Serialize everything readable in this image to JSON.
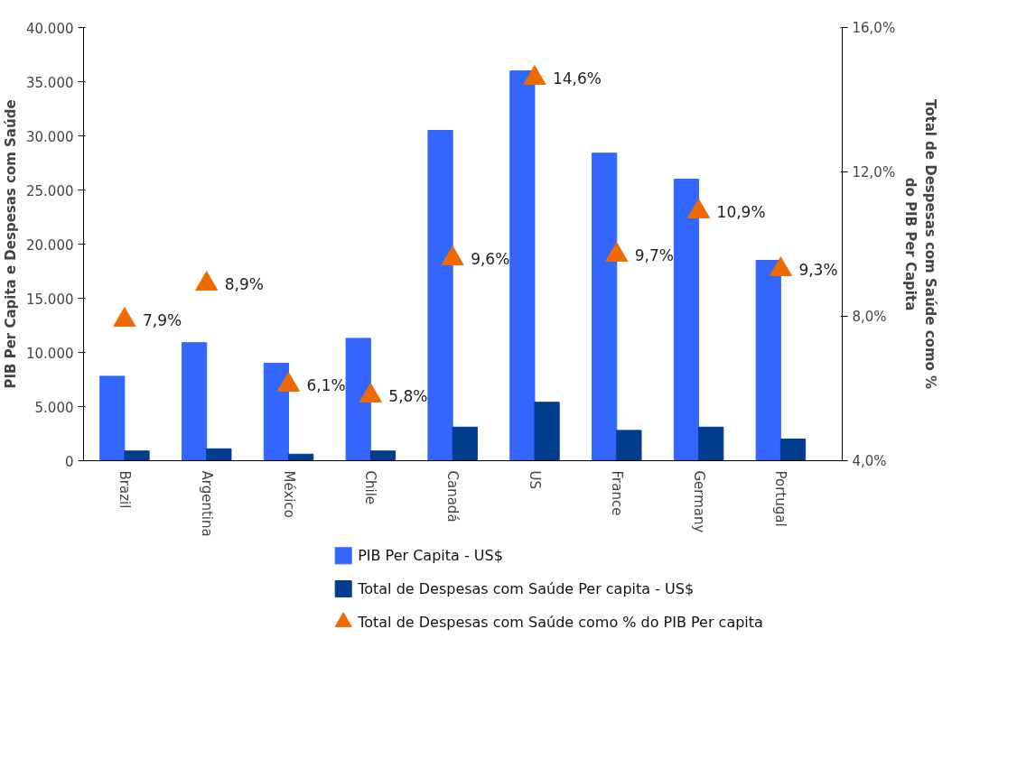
{
  "chart_data": {
    "type": "bar",
    "ylabel": "PIB Per Capita e Despesas com Saúde",
    "y2label": "Total de Despesas com Saúde como %\ndo PIB Per Capita",
    "categories": [
      "Brazil",
      "Argentina",
      "México",
      "Chile",
      "Canadá",
      "US",
      "France",
      "Germany",
      "Portugal"
    ],
    "series": [
      {
        "name": "PIB Per Capita - US$",
        "color": "#3366ff",
        "values": [
          7800,
          10900,
          9000,
          11300,
          30500,
          36000,
          28400,
          26000,
          18500
        ]
      },
      {
        "name": "Total de Despesas com Saúde Per capita - US$",
        "color": "#003d8f",
        "values": [
          900,
          1100,
          600,
          900,
          3100,
          5400,
          2800,
          3100,
          2000
        ]
      },
      {
        "name": "Total de Despesas com Saúde como % do PIB Per capita",
        "color": "#ee6a00",
        "type": "scatter",
        "marker": "triangle",
        "axis": "y2",
        "values": [
          7.9,
          8.9,
          6.1,
          5.8,
          9.6,
          14.6,
          9.7,
          10.9,
          9.3
        ],
        "value_labels": [
          "7,9%",
          "8,9%",
          "6,1%",
          "5,8%",
          "9,6%",
          "14,6%",
          "9,7%",
          "10,9%",
          "9,3%"
        ]
      }
    ],
    "ylim": [
      0,
      40000
    ],
    "yticks": [
      0,
      {
        "value": 5000,
        "label": "5.000"
      },
      {
        "value": 10000,
        "label": "10.000"
      },
      {
        "value": 15000,
        "label": "15.000"
      },
      {
        "value": 20000,
        "label": "20.000"
      },
      {
        "value": 25000,
        "label": "25.000"
      },
      {
        "value": 30000,
        "label": "30.000"
      },
      {
        "value": 35000,
        "label": "35.000"
      },
      {
        "value": 40000,
        "label": "40.000"
      }
    ],
    "y2lim": [
      4,
      16
    ],
    "y2ticks": [
      {
        "value": 4,
        "label": "4,0%"
      },
      {
        "value": 8,
        "label": "8,0%"
      },
      {
        "value": 12,
        "label": "12,0%"
      },
      {
        "value": 16,
        "label": "16,0%"
      }
    ],
    "grid": false,
    "legend": "bottom"
  }
}
